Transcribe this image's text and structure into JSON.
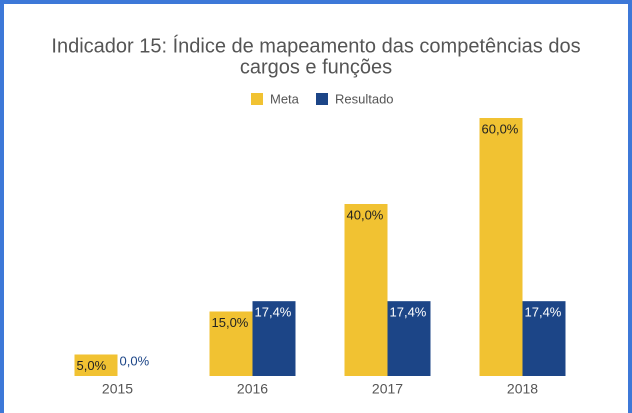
{
  "chart_data": {
    "type": "bar",
    "title": "Indicador 15: Índice de mapeamento das competências dos cargos e funções",
    "categories": [
      "2015",
      "2016",
      "2017",
      "2018"
    ],
    "series": [
      {
        "name": "Meta",
        "color": "#f1c232",
        "values": [
          5,
          15,
          40,
          60
        ],
        "value_labels": [
          "5,0%",
          "15,0%",
          "40,0%",
          "60,0%"
        ]
      },
      {
        "name": "Resultado",
        "color": "#1c4587",
        "values": [
          0,
          17.4,
          17.4,
          17.4
        ],
        "value_labels": [
          "0,0%",
          "17,4%",
          "17,4%",
          "17,4%"
        ]
      }
    ]
  }
}
